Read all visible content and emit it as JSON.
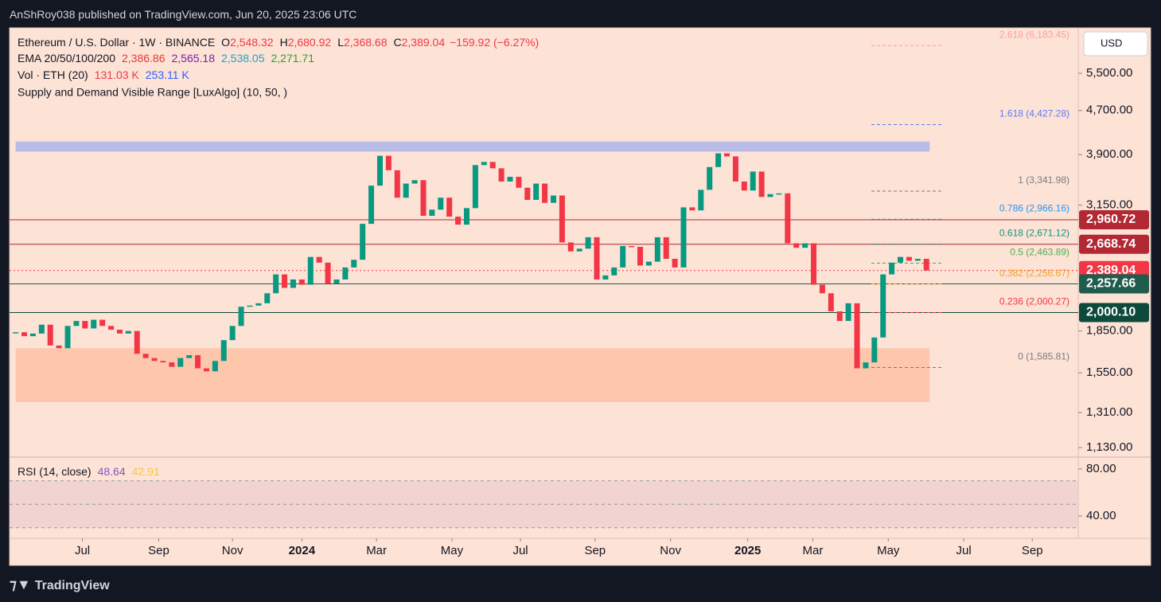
{
  "header": {
    "publisher": "AnShRoy038 published on TradingView.com, Jun 20, 2025 23:06 UTC"
  },
  "legend": {
    "symbol": "Ethereum / U.S. Dollar · 1W · BINANCE",
    "ohlc": [
      {
        "key": "O",
        "value": "2,548.32"
      },
      {
        "key": "H",
        "value": "2,680.92"
      },
      {
        "key": "L",
        "value": "2,368.68"
      },
      {
        "key": "C",
        "value": "2,389.04"
      }
    ],
    "change": "−159.92 (−6.27%)",
    "ema": {
      "name": "EMA 20/50/100/200",
      "values": [
        {
          "text": "2,386.86",
          "color": "#e53935"
        },
        {
          "text": "2,565.18",
          "color": "#7b1fa2"
        },
        {
          "text": "2,538.05",
          "color": "#1aa3c9"
        },
        {
          "text": "2,271.71",
          "color": "#2e9e2e"
        }
      ]
    },
    "vol": {
      "name": "Vol · ETH (20)",
      "values": [
        {
          "text": "131.03 K",
          "color": "#f23645"
        },
        {
          "text": "253.11 K",
          "color": "#2962ff"
        }
      ]
    },
    "indicator": "Supply and Demand Visible Range [LuxAlgo] (10, 50, )"
  },
  "currency": "USD",
  "chart_data": {
    "type": "candlestick",
    "log_scale": true,
    "ylim": [
      1093,
      6663
    ],
    "yticks": [
      {
        "value": 5500,
        "label": "5,500.00"
      },
      {
        "value": 4700,
        "label": "4,700.00"
      },
      {
        "value": 3900,
        "label": "3,900.00"
      },
      {
        "value": 3150,
        "label": "3,150.00"
      },
      {
        "value": 1850,
        "label": "1,850.00"
      },
      {
        "value": 1550,
        "label": "1,550.00"
      },
      {
        "value": 1310,
        "label": "1,310.00"
      },
      {
        "value": 1130,
        "label": "1,130.00"
      }
    ],
    "xlim": [
      -0.7,
      122.5
    ],
    "xticks": [
      {
        "value": 7.7,
        "label": "Jul"
      },
      {
        "value": 16.5,
        "label": "Sep"
      },
      {
        "value": 25,
        "label": "Nov"
      },
      {
        "value": 33,
        "label": "2024"
      },
      {
        "value": 41.6,
        "label": "Mar"
      },
      {
        "value": 50.3,
        "label": "May"
      },
      {
        "value": 58.2,
        "label": "Jul"
      },
      {
        "value": 66.8,
        "label": "Sep"
      },
      {
        "value": 75.5,
        "label": "Nov"
      },
      {
        "value": 84.4,
        "label": "2025"
      },
      {
        "value": 91.9,
        "label": "Mar"
      },
      {
        "value": 100.6,
        "label": "May"
      },
      {
        "value": 109.3,
        "label": "Jul"
      },
      {
        "value": 117.2,
        "label": "Sep"
      }
    ],
    "up_color": "#089981",
    "down_color": "#f23645",
    "values": [
      1840,
      1810,
      1830,
      1900,
      1740,
      1720,
      1890,
      1930,
      1870,
      1940,
      1890,
      1860,
      1830,
      1850,
      1680,
      1650,
      1630,
      1620,
      1590,
      1650,
      1670,
      1580,
      1560,
      1630,
      1780,
      1890,
      2050,
      2060,
      2080,
      2170,
      2350,
      2220,
      2300,
      2250,
      2530,
      2470,
      2260,
      2300,
      2420,
      2500,
      2910,
      3420,
      3880,
      3650,
      3250,
      3450,
      3500,
      3010,
      3090,
      3250,
      3000,
      2900,
      3110,
      3730,
      3780,
      3680,
      3480,
      3550,
      3390,
      3220,
      3450,
      3180,
      3280,
      2690,
      2590,
      2620,
      2750,
      2300,
      2340,
      2420,
      2650,
      2640,
      2440,
      2480,
      2750,
      2510,
      2420,
      3120,
      3080,
      3360,
      3700,
      3920,
      3870,
      3480,
      3350,
      3630,
      3260,
      3300,
      3310,
      2680,
      2630,
      2680,
      2250,
      2170,
      2010,
      1930,
      2080,
      1580,
      1620,
      1800,
      2350,
      2470,
      2530,
      2490,
      2510,
      2389.04
    ],
    "zones": [
      {
        "low": 3950,
        "high": 4120,
        "color": "#7f9cf5"
      },
      {
        "low": 1370,
        "high": 1720,
        "color": "#ffb08a"
      }
    ],
    "price_tags": [
      {
        "value": 2960.72,
        "label": "2,960.72",
        "color": "#b22833"
      },
      {
        "value": 2668.74,
        "label": "2,668.74",
        "color": "#b22833"
      },
      {
        "value": 2389.04,
        "label": "2,389.04",
        "color": "#f23645"
      },
      {
        "value": 2257.66,
        "label": "2,257.66",
        "color": "#1f5c4d"
      },
      {
        "value": 2000.1,
        "label": "2,000.10",
        "color": "#0d4a39"
      }
    ],
    "fib": [
      {
        "value": 6183.45,
        "label": "2.618 (6,183.45)",
        "color": "#f7a1a1"
      },
      {
        "value": 4427.28,
        "label": "1.618 (4,427.28)",
        "color": "#5c7cfa"
      },
      {
        "value": 3341.98,
        "label": "1 (3,341.98)",
        "color": "#787b86"
      },
      {
        "value": 2966.16,
        "label": "0.786 (2,966.16)",
        "color": "#2196f3"
      },
      {
        "value": 2671.12,
        "label": "0.618 (2,671.12)",
        "color": "#089981"
      },
      {
        "value": 2463.89,
        "label": "0.5 (2,463.89)",
        "color": "#4caf50"
      },
      {
        "value": 2256.67,
        "label": "0.382 (2,256.67)",
        "color": "#f7a21b"
      },
      {
        "value": 2000.27,
        "label": "0.236 (2,000.27)",
        "color": "#f23645"
      },
      {
        "value": 1585.81,
        "label": "0 (1,585.81)",
        "color": "#787b86"
      }
    ]
  },
  "rsi": {
    "name": "RSI (14, close)",
    "values": [
      {
        "text": "48.64",
        "color": "#7e57c2"
      },
      {
        "text": "42.91",
        "color": "#f7c948"
      }
    ],
    "ylim": [
      23.7,
      88.1
    ],
    "yticks": [
      {
        "value": 80,
        "label": "80.00"
      },
      {
        "value": 40,
        "label": "40.00"
      }
    ],
    "levels": [
      70,
      50,
      30
    ]
  },
  "footer": {
    "brand": "TradingView"
  }
}
